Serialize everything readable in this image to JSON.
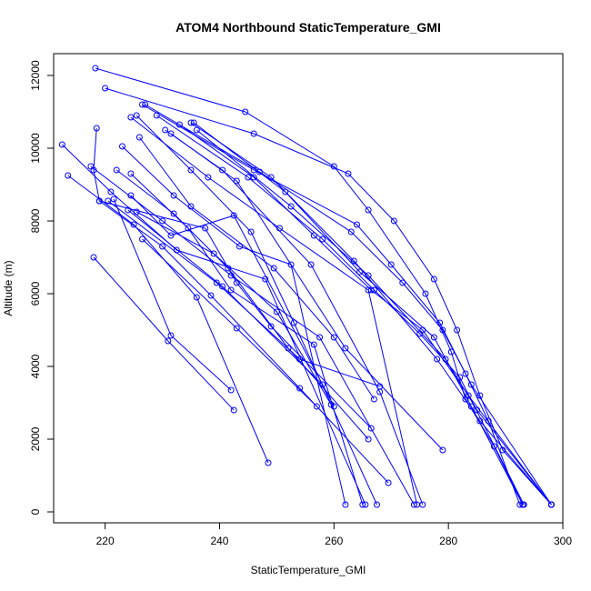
{
  "chart_data": {
    "type": "line",
    "title": "ATOM4 Northbound StaticTemperature_GMI",
    "xlabel": "StaticTemperature_GMI",
    "ylabel": "Altitude (m)",
    "xlim": [
      211,
      300
    ],
    "ylim": [
      -300,
      12600
    ],
    "xticks": [
      220,
      240,
      260,
      280,
      300
    ],
    "yticks": [
      0,
      2000,
      4000,
      6000,
      8000,
      10000,
      12000
    ],
    "grid": false,
    "legend": "none",
    "colors": {
      "series": "#0000ff",
      "axis": "#000000",
      "background": "#ffffff"
    },
    "series": [
      {
        "x": [
          218.3,
          244.5,
          260.0,
          266.0,
          276.0,
          280.5,
          283.0,
          288.0,
          293.0
        ],
        "y": [
          12200,
          11000,
          9500,
          8300,
          6000,
          4400,
          3100,
          1800,
          200
        ]
      },
      {
        "x": [
          220.0,
          246.0,
          262.5,
          270.5,
          277.5,
          281.5,
          285.5,
          289.5,
          298.0
        ],
        "y": [
          11650,
          10400,
          9300,
          8000,
          6400,
          5000,
          3200,
          1700,
          200
        ]
      },
      {
        "x": [
          226.5,
          246.0,
          264.0,
          270.0,
          278.5,
          283.0,
          287.0,
          292.5
        ],
        "y": [
          11200,
          9400,
          7900,
          6800,
          5200,
          3800,
          2500,
          200
        ]
      },
      {
        "x": [
          227.0,
          247.0,
          263.0,
          272.0,
          279.0,
          284.0,
          298.0
        ],
        "y": [
          11200,
          9350,
          7700,
          6300,
          5000,
          3500,
          200
        ]
      },
      {
        "x": [
          229.0,
          245.0,
          258.0,
          267.0,
          275.0,
          282.0,
          293.2
        ],
        "y": [
          10900,
          9200,
          7500,
          6100,
          4900,
          3700,
          200
        ]
      },
      {
        "x": [
          233.0,
          246.0,
          256.5,
          266.5,
          275.5,
          283.5,
          298.0
        ],
        "y": [
          10650,
          9200,
          7600,
          6100,
          5000,
          3200,
          200
        ]
      },
      {
        "x": [
          235.0,
          249.0,
          263.5,
          278.0,
          285.5,
          298.0
        ],
        "y": [
          10700,
          9200,
          6900,
          4200,
          2500,
          200
        ]
      },
      {
        "x": [
          235.5,
          251.5,
          264.5,
          277.5,
          284.0,
          293.0
        ],
        "y": [
          10700,
          8800,
          6600,
          4800,
          2900,
          200
        ]
      },
      {
        "x": [
          236.0,
          252.5,
          266.0,
          279.5,
          285.0,
          298.0
        ],
        "y": [
          10500,
          8400,
          6500,
          4200,
          2800,
          200
        ]
      },
      {
        "x": [
          224.5,
          238.0,
          250.5,
          266.0,
          274.5
        ],
        "y": [
          10850,
          9200,
          7800,
          6100,
          200
        ]
      },
      {
        "x": [
          231.5,
          243.0,
          262.0,
          279.0
        ],
        "y": [
          10400,
          9100,
          4500,
          1700
        ]
      },
      {
        "x": [
          230.5,
          240.5,
          256.0,
          268.0,
          275.5
        ],
        "y": [
          10500,
          9400,
          6800,
          3300,
          200
        ]
      },
      {
        "x": [
          226.0,
          235.0,
          249.5,
          260.0,
          267.0
        ],
        "y": [
          10300,
          8400,
          6700,
          4800,
          3100
        ]
      },
      {
        "x": [
          223.0,
          232.0,
          243.5,
          252.5,
          262.0
        ],
        "y": [
          10050,
          8700,
          7300,
          6800,
          200
        ]
      },
      {
        "x": [
          225.5,
          235.0,
          245.5,
          253.0,
          267.5
        ],
        "y": [
          10900,
          9400,
          7700,
          5200,
          200
        ]
      },
      {
        "x": [
          218.5,
          218.0,
          219.0,
          237.5,
          243.0,
          249.0,
          266.5
        ],
        "y": [
          10550,
          9400,
          8550,
          7800,
          6300,
          5100,
          2300
        ]
      },
      {
        "x": [
          212.5,
          221.0,
          232.5,
          248.0,
          265.5
        ],
        "y": [
          10100,
          8800,
          7200,
          6400,
          200
        ]
      },
      {
        "x": [
          217.5,
          230.0,
          242.0,
          257.5,
          274.0
        ],
        "y": [
          9500,
          8000,
          6500,
          4800,
          200
        ]
      },
      {
        "x": [
          222.0,
          232.0,
          241.5,
          252.0,
          266.0
        ],
        "y": [
          9400,
          8200,
          6700,
          4500,
          2000
        ]
      },
      {
        "x": [
          224.5,
          234.5,
          242.0,
          256.5,
          265.0
        ],
        "y": [
          9300,
          7800,
          6100,
          4600,
          200
        ]
      },
      {
        "x": [
          213.5,
          225.0,
          236.0,
          248.5
        ],
        "y": [
          9250,
          7900,
          5900,
          1350
        ]
      },
      {
        "x": [
          219.0,
          230.0,
          238.5,
          254.0,
          269.5
        ],
        "y": [
          8550,
          7300,
          5950,
          3400,
          800
        ]
      },
      {
        "x": [
          224.5,
          231.5,
          242.5,
          260.0
        ],
        "y": [
          8700,
          7600,
          8150,
          2900
        ]
      },
      {
        "x": [
          225.5,
          239.0,
          250.0,
          259.5
        ],
        "y": [
          8250,
          7100,
          5500,
          2950
        ]
      },
      {
        "x": [
          220.5,
          239.5,
          254.0,
          268.0
        ],
        "y": [
          8550,
          6300,
          4200,
          3450
        ]
      },
      {
        "x": [
          218.0,
          231.0,
          242.5
        ],
        "y": [
          7000,
          4700,
          2800
        ]
      },
      {
        "x": [
          221.5,
          231.5,
          242.0
        ],
        "y": [
          8600,
          4850,
          3350
        ]
      },
      {
        "x": [
          226.5,
          243.0,
          257.0
        ],
        "y": [
          7500,
          5050,
          2900
        ]
      },
      {
        "x": [
          224.0,
          240.5,
          258.0
        ],
        "y": [
          8300,
          6200,
          3500
        ]
      }
    ]
  }
}
